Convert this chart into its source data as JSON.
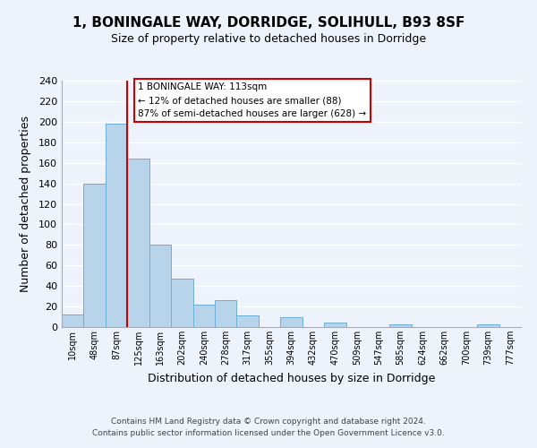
{
  "title": "1, BONINGALE WAY, DORRIDGE, SOLIHULL, B93 8SF",
  "subtitle": "Size of property relative to detached houses in Dorridge",
  "xlabel": "Distribution of detached houses by size in Dorridge",
  "ylabel": "Number of detached properties",
  "bar_color": "#b8d4ea",
  "bar_edge_color": "#6aaed6",
  "background_color": "#eef2fb",
  "grid_color": "#ffffff",
  "bin_labels": [
    "10sqm",
    "48sqm",
    "87sqm",
    "125sqm",
    "163sqm",
    "202sqm",
    "240sqm",
    "278sqm",
    "317sqm",
    "355sqm",
    "394sqm",
    "432sqm",
    "470sqm",
    "509sqm",
    "547sqm",
    "585sqm",
    "624sqm",
    "662sqm",
    "700sqm",
    "739sqm",
    "777sqm"
  ],
  "bar_heights": [
    12,
    140,
    198,
    164,
    80,
    47,
    22,
    26,
    11,
    0,
    10,
    0,
    4,
    0,
    0,
    3,
    0,
    0,
    0,
    3,
    0
  ],
  "vline_color": "#cc0000",
  "vline_index": 2.5,
  "ylim": [
    0,
    240
  ],
  "yticks": [
    0,
    20,
    40,
    60,
    80,
    100,
    120,
    140,
    160,
    180,
    200,
    220,
    240
  ],
  "annotation_title": "1 BONINGALE WAY: 113sqm",
  "annotation_line1": "← 12% of detached houses are smaller (88)",
  "annotation_line2": "87% of semi-detached houses are larger (628) →",
  "annotation_box_color": "white",
  "annotation_box_edge_color": "#cc0000",
  "footer_line1": "Contains HM Land Registry data © Crown copyright and database right 2024.",
  "footer_line2": "Contains public sector information licensed under the Open Government Licence v3.0."
}
